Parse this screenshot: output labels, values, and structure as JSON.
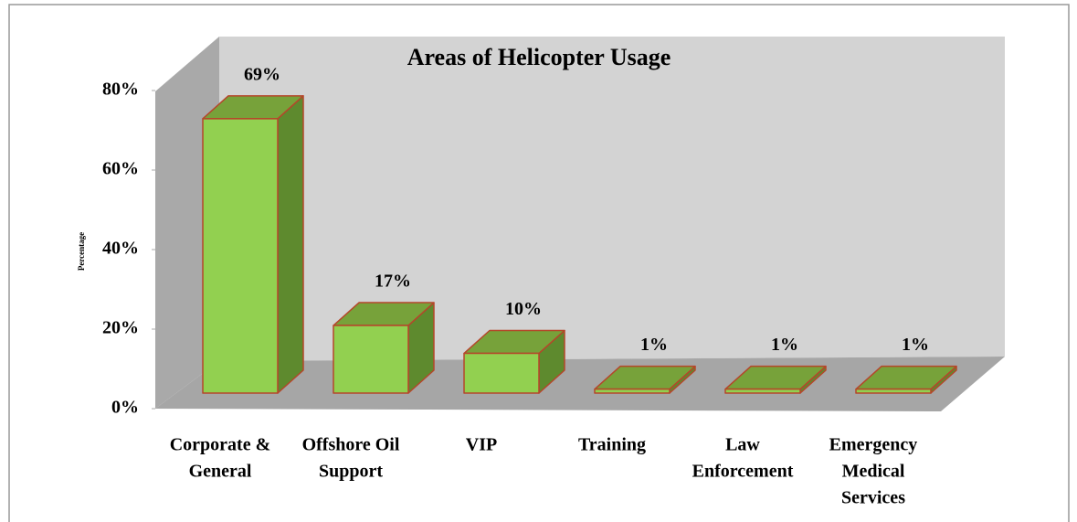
{
  "chart_data": {
    "type": "bar3d",
    "title": "Areas of Helicopter Usage",
    "y_label": "Percentage",
    "categories": [
      [
        "Corporate &",
        "General"
      ],
      [
        "Offshore Oil",
        "Support"
      ],
      [
        "VIP"
      ],
      [
        "Training"
      ],
      [
        "Law",
        "Enforcement"
      ],
      [
        "Emergency",
        "Medical",
        "Services"
      ]
    ],
    "values": [
      69,
      17,
      10,
      1,
      1,
      1
    ],
    "value_labels": [
      "69%",
      "17%",
      "10%",
      "1%",
      "1%",
      "1%"
    ],
    "color": "#92d050",
    "ylim": [
      0,
      80
    ],
    "yticks": [
      {
        "value": 0,
        "label": "0%"
      },
      {
        "value": 20,
        "label": "20%"
      },
      {
        "value": 40,
        "label": "40%"
      },
      {
        "value": 60,
        "label": "60%"
      },
      {
        "value": 80,
        "label": "80%"
      }
    ]
  }
}
